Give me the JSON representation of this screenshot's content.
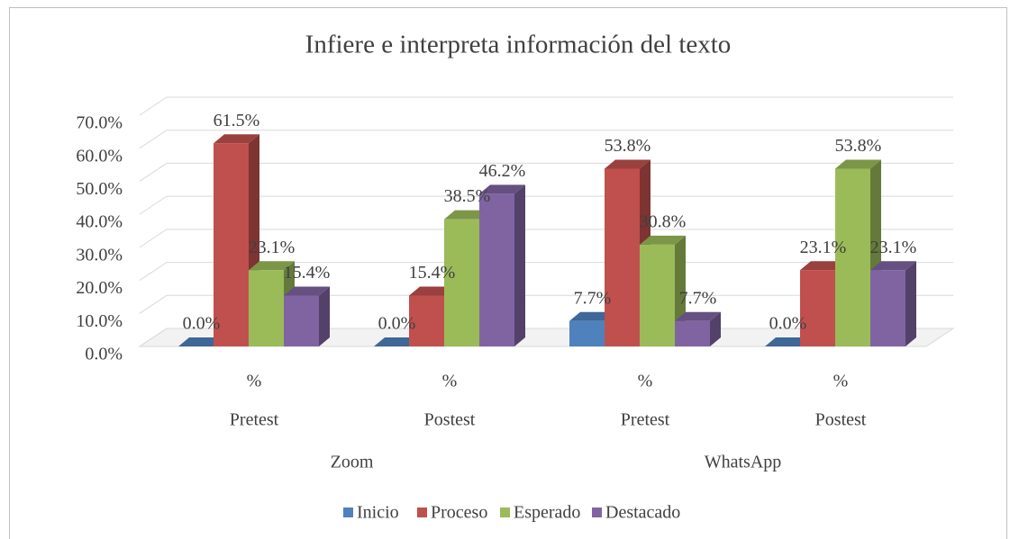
{
  "chart_data": {
    "type": "bar3d",
    "title": "Infiere e interpreta información del texto",
    "categories": [
      "%",
      "%",
      "%",
      "%"
    ],
    "subcategories": [
      "Pretest",
      "Postest",
      "Pretest",
      "Postest"
    ],
    "groups": [
      "Zoom",
      "WhatsApp"
    ],
    "series": [
      {
        "name": "Inicio",
        "color": "#4f81bd",
        "values": [
          0,
          0,
          7.7,
          0
        ],
        "value_labels": [
          "0.0%",
          "0.0%",
          "7.7%",
          "0.0%"
        ]
      },
      {
        "name": "Proceso",
        "color": "#c0504d",
        "values": [
          61.5,
          15.4,
          53.8,
          23.1
        ],
        "value_labels": [
          "61.5%",
          "15.4%",
          "53.8%",
          "23.1%"
        ]
      },
      {
        "name": "Esperado",
        "color": "#9bbb59",
        "values": [
          23.1,
          38.5,
          30.8,
          53.8
        ],
        "value_labels": [
          "23.1%",
          "38.5%",
          "30.8%",
          "53.8%"
        ]
      },
      {
        "name": "Destacado",
        "color": "#8064a2",
        "values": [
          15.4,
          46.2,
          7.7,
          23.1
        ],
        "value_labels": [
          "15.4%",
          "46.2%",
          "7.7%",
          "23.1%"
        ]
      }
    ],
    "ylim": [
      0,
      70
    ],
    "yticks": [
      {
        "value": 0,
        "label": "0.0%"
      },
      {
        "value": 10,
        "label": "10.0%"
      },
      {
        "value": 20,
        "label": "20.0%"
      },
      {
        "value": 30,
        "label": "30.0%"
      },
      {
        "value": 40,
        "label": "40.0%"
      },
      {
        "value": 50,
        "label": "50.0%"
      },
      {
        "value": 60,
        "label": "60.0%"
      },
      {
        "value": 70,
        "label": "70.0%"
      }
    ],
    "grid": true,
    "legend": "bottom"
  }
}
